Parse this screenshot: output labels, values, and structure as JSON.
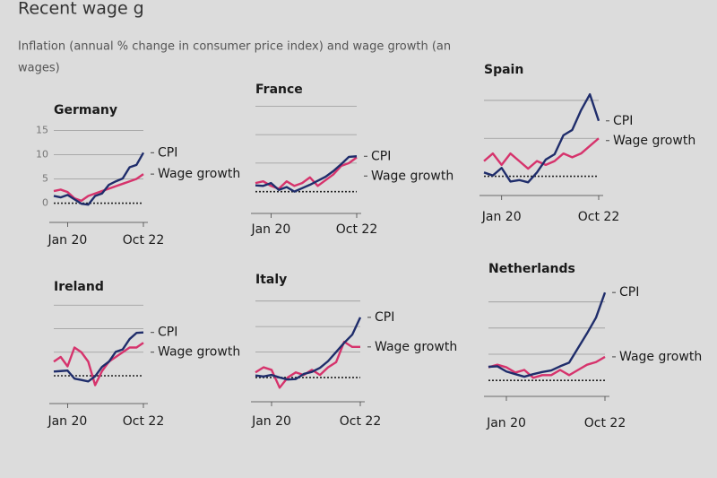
{
  "header": {
    "title": "Recent wage g",
    "subtitle": [
      "Inflation (annual % change in consumer price index) and wage growth (an",
      "wages)"
    ]
  },
  "chart_data": [
    {
      "type": "line",
      "title": "Germany",
      "categories": [
        null,
        null,
        "Jan 20",
        null,
        null,
        null,
        null,
        null,
        null,
        null,
        null,
        null,
        null,
        "Oct 22"
      ],
      "series": [
        {
          "name": "CPI",
          "color": "#1f2d6b",
          "values": [
            1.5,
            1.2,
            1.7,
            0.8,
            -0.1,
            -0.3,
            1.5,
            2.0,
            3.8,
            4.5,
            5.1,
            7.4,
            7.9,
            10.4
          ]
        },
        {
          "name": "Wage growth",
          "color": "#d6336c",
          "values": [
            2.5,
            2.8,
            2.3,
            1.0,
            0.5,
            1.5,
            2.0,
            2.5,
            3.0,
            3.5,
            4.0,
            4.5,
            5.0,
            6.0
          ]
        }
      ],
      "ylim": [
        -1,
        16
      ],
      "yticks": [
        0,
        5,
        10,
        15
      ],
      "tick_labels": true
    },
    {
      "type": "line",
      "title": "France",
      "categories": [
        null,
        null,
        "Jan 20",
        null,
        null,
        null,
        null,
        null,
        null,
        null,
        null,
        null,
        null,
        "Oct 22"
      ],
      "series": [
        {
          "name": "CPI",
          "color": "#1f2d6b",
          "values": [
            1.1,
            1.0,
            1.5,
            0.3,
            0.8,
            0.0,
            0.6,
            1.2,
            1.9,
            2.6,
            3.6,
            4.8,
            6.1,
            6.2
          ]
        },
        {
          "name": "Wage growth",
          "color": "#d6336c",
          "values": [
            1.5,
            1.8,
            1.0,
            0.5,
            1.8,
            1.0,
            1.5,
            2.5,
            1.0,
            2.0,
            3.0,
            4.5,
            5.0,
            6.0
          ]
        }
      ],
      "ylim": [
        -1,
        16
      ],
      "yticks": [
        0,
        5,
        10,
        15
      ],
      "tick_labels": false
    },
    {
      "type": "line",
      "title": "Spain",
      "categories": [
        null,
        null,
        "Jan 20",
        null,
        null,
        null,
        null,
        null,
        null,
        null,
        null,
        null,
        null,
        "Oct 22"
      ],
      "series": [
        {
          "name": "CPI",
          "color": "#1f2d6b",
          "values": [
            0.5,
            0.1,
            1.1,
            -0.7,
            -0.5,
            -0.8,
            0.5,
            2.2,
            2.9,
            5.4,
            6.1,
            8.7,
            10.8,
            7.3
          ]
        },
        {
          "name": "Wage growth",
          "color": "#d6336c",
          "values": [
            2.0,
            3.0,
            1.5,
            3.0,
            2.0,
            1.0,
            2.0,
            1.5,
            2.0,
            3.0,
            2.5,
            3.0,
            4.0,
            5.0
          ]
        }
      ],
      "ylim": [
        -1,
        12
      ],
      "yticks": [
        0,
        5,
        10
      ],
      "tick_labels": false
    },
    {
      "type": "line",
      "title": "Ireland",
      "categories": [
        null,
        null,
        "Jan 20",
        null,
        null,
        null,
        null,
        null,
        null,
        null,
        null,
        null,
        null,
        "Oct 22"
      ],
      "series": [
        {
          "name": "CPI",
          "color": "#1f2d6b",
          "values": [
            0.9,
            1.0,
            1.1,
            -0.6,
            -0.9,
            -1.2,
            -0.1,
            1.9,
            3.0,
            5.1,
            5.6,
            7.8,
            9.1,
            9.2
          ]
        },
        {
          "name": "Wage growth",
          "color": "#d6336c",
          "values": [
            3.0,
            4.0,
            2.0,
            6.0,
            5.0,
            3.0,
            -2.0,
            1.0,
            3.0,
            4.0,
            5.0,
            6.0,
            6.0,
            7.0
          ]
        }
      ],
      "ylim": [
        -4,
        16
      ],
      "yticks": [
        0,
        5,
        10,
        15
      ],
      "tick_labels": false
    },
    {
      "type": "line",
      "title": "Italy",
      "categories": [
        null,
        null,
        "Jan 20",
        null,
        null,
        null,
        null,
        null,
        null,
        null,
        null,
        null,
        null,
        "Oct 22"
      ],
      "series": [
        {
          "name": "CPI",
          "color": "#1f2d6b",
          "values": [
            0.4,
            0.2,
            0.5,
            0.0,
            -0.4,
            -0.3,
            0.7,
            1.1,
            1.9,
            3.2,
            5.0,
            6.8,
            8.4,
            11.8
          ]
        },
        {
          "name": "Wage growth",
          "color": "#d6336c",
          "values": [
            1.0,
            2.0,
            1.5,
            -2.0,
            0.0,
            1.0,
            0.5,
            1.5,
            0.5,
            2.0,
            3.0,
            7.0,
            6.0,
            6.0
          ]
        }
      ],
      "ylim": [
        -3,
        16
      ],
      "yticks": [
        0,
        5,
        10,
        15
      ],
      "tick_labels": false
    },
    {
      "type": "line",
      "title": "Netherlands",
      "categories": [
        null,
        null,
        "Jan 20",
        null,
        null,
        null,
        null,
        null,
        null,
        null,
        null,
        null,
        null,
        "Oct 22"
      ],
      "series": [
        {
          "name": "CPI",
          "color": "#1f2d6b",
          "values": [
            2.6,
            2.7,
            1.7,
            1.2,
            0.7,
            1.2,
            1.6,
            1.9,
            2.7,
            3.4,
            6.2,
            9.0,
            12.0,
            16.8
          ]
        },
        {
          "name": "Wage growth",
          "color": "#d6336c",
          "values": [
            2.5,
            3.0,
            2.5,
            1.5,
            2.0,
            0.5,
            1.0,
            1.0,
            2.0,
            1.0,
            2.0,
            3.0,
            3.5,
            4.5
          ]
        }
      ],
      "ylim": [
        -1,
        17
      ],
      "yticks": [
        0,
        5,
        10,
        15
      ],
      "tick_labels": false
    }
  ]
}
